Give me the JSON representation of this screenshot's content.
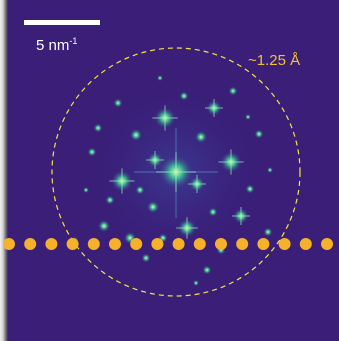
{
  "scale_bar": {
    "value": "5 nm",
    "exponent": "-1"
  },
  "ring": {
    "label": "~1.25 Å"
  },
  "colors": {
    "background": "#3a1e78",
    "ring": "#f2e34a",
    "dots": "#f6b12a",
    "spot_core": "#e8ff9a",
    "spot_glow": "#3ed6a0",
    "scale_text": "#ffffff",
    "ring_text": "#f2c233"
  }
}
